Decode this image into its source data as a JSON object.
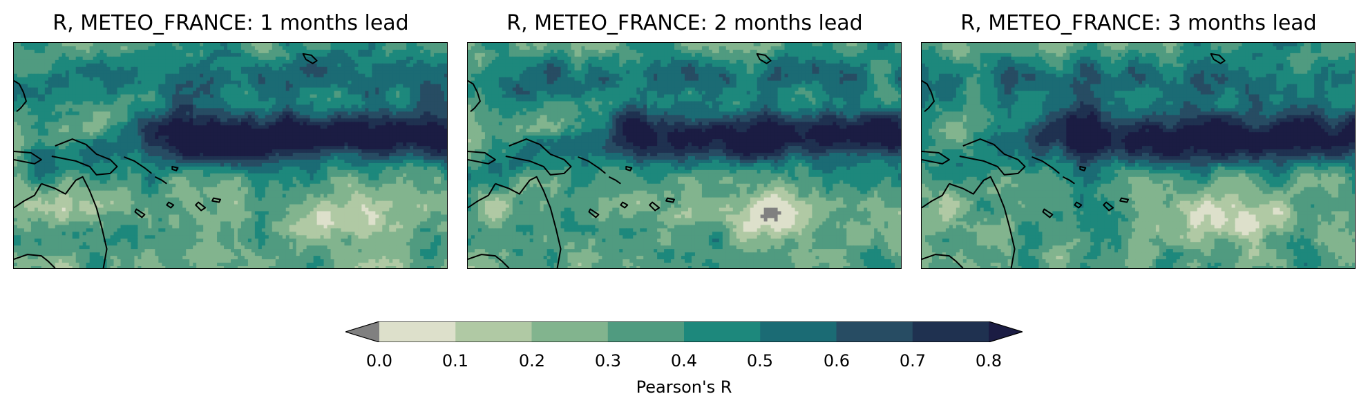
{
  "panels": [
    {
      "title": "R, METEO_FRANCE: 1 months lead"
    },
    {
      "title": "R, METEO_FRANCE: 2 months lead"
    },
    {
      "title": "R, METEO_FRANCE: 3 months lead"
    }
  ],
  "colorbar": {
    "label": "Pearson's R",
    "ticks": [
      "0.0",
      "0.1",
      "0.2",
      "0.3",
      "0.4",
      "0.5",
      "0.6",
      "0.7",
      "0.8"
    ],
    "levels": [
      0.0,
      0.1,
      0.2,
      0.3,
      0.4,
      0.5,
      0.6,
      0.7,
      0.8
    ],
    "colors": [
      "#dde0cb",
      "#b0c9a4",
      "#82b48e",
      "#509b80",
      "#1d887c",
      "#1b6b74",
      "#274c63",
      "#1f3150"
    ],
    "under_color": "#808080",
    "over_color": "#1b1c43",
    "extend": "both"
  },
  "map_colors": {
    "coastline": "#000000",
    "below_zero": "#808080",
    "band_core": "#1b1c43"
  }
}
